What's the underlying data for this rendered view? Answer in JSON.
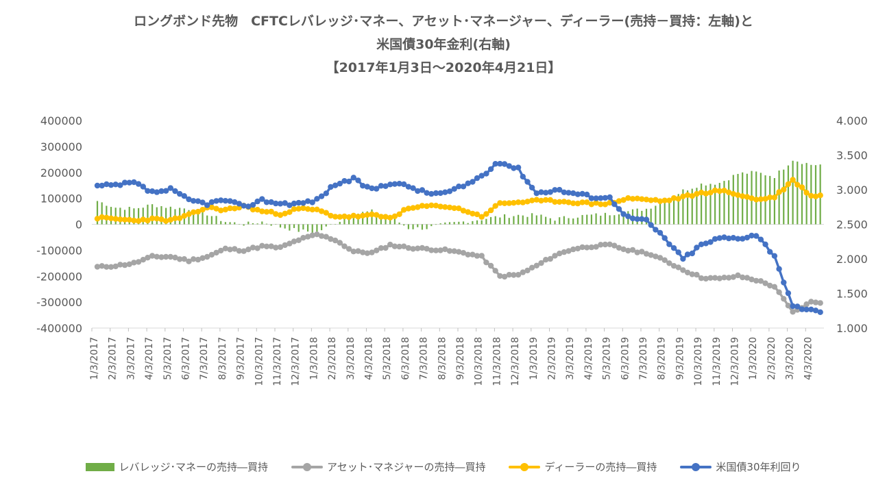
{
  "chart_data": {
    "type": "bar+line",
    "title_lines": [
      "ロングボンド先物　CFTCレバレッジ･マネー、アセット･マネージャー、ディーラー(売持－買持：左軸)と",
      "米国債30年金利(右軸)",
      "【2017年1月3日～2020年4月21日】"
    ],
    "left_axis": {
      "min": -400000,
      "max": 400000,
      "ticks": [
        "400000",
        "300000",
        "200000",
        "100000",
        "0",
        "-100000",
        "-200000",
        "-300000",
        "-400000"
      ]
    },
    "right_axis": {
      "min": 1.0,
      "max": 4.0,
      "ticks": [
        "4.000",
        "3.500",
        "3.000",
        "2.500",
        "2.000",
        "1.500",
        "1.000"
      ]
    },
    "x_tick_labels": [
      "1/3/2017",
      "2/3/2017",
      "3/3/2017",
      "4/3/2017",
      "5/3/2017",
      "6/3/2017",
      "7/3/2017",
      "8/3/2017",
      "9/3/2017",
      "10/3/2017",
      "11/3/2017",
      "12/3/2017",
      "1/3/2018",
      "2/3/2018",
      "3/3/2018",
      "4/3/2018",
      "5/3/2018",
      "6/3/2018",
      "7/3/2018",
      "8/3/2018",
      "9/3/2018",
      "10/3/2018",
      "11/3/2018",
      "12/3/2018",
      "1/3/2019",
      "2/3/2019",
      "3/3/2019",
      "4/3/2019",
      "5/3/2019",
      "6/3/2019",
      "7/3/2019",
      "8/3/2019",
      "9/3/2019",
      "10/3/2019",
      "11/3/2019",
      "12/3/2019",
      "1/3/2020",
      "2/3/2020",
      "3/3/2020",
      "4/3/2020"
    ],
    "series": [
      {
        "name": "レバレッジ･マネーの売持―買持",
        "type": "bar",
        "axis": "left",
        "color": "#70AD47",
        "monthly_values": [
          90000,
          65000,
          60000,
          75000,
          65000,
          60000,
          40000,
          10000,
          0,
          10000,
          -10000,
          -25000,
          -30000,
          5000,
          40000,
          50000,
          30000,
          -15000,
          -15000,
          0,
          10000,
          20000,
          30000,
          35000,
          35000,
          20000,
          30000,
          35000,
          40000,
          50000,
          60000,
          90000,
          130000,
          155000,
          160000,
          195000,
          200000,
          185000,
          250000,
          230000
        ]
      },
      {
        "name": "アセット･マネジャーの売持―買持",
        "type": "line",
        "axis": "left",
        "color": "#A5A5A5",
        "monthly_values": [
          -165000,
          -160000,
          -150000,
          -125000,
          -125000,
          -140000,
          -125000,
          -95000,
          -100000,
          -85000,
          -90000,
          -60000,
          -40000,
          -60000,
          -105000,
          -110000,
          -80000,
          -90000,
          -95000,
          -100000,
          -110000,
          -125000,
          -200000,
          -195000,
          -160000,
          -120000,
          -95000,
          -85000,
          -80000,
          -100000,
          -110000,
          -140000,
          -175000,
          -205000,
          -210000,
          -200000,
          -215000,
          -240000,
          -340000,
          -300000
        ]
      },
      {
        "name": "ディーラーの売持―買持",
        "type": "line",
        "axis": "left",
        "color": "#FFC000",
        "monthly_values": [
          25000,
          20000,
          15000,
          20000,
          15000,
          35000,
          65000,
          55000,
          70000,
          50000,
          40000,
          60000,
          55000,
          30000,
          30000,
          35000,
          25000,
          60000,
          70000,
          70000,
          55000,
          30000,
          80000,
          85000,
          90000,
          90000,
          85000,
          80000,
          80000,
          100000,
          95000,
          90000,
          105000,
          120000,
          130000,
          115000,
          95000,
          105000,
          170000,
          110000
        ]
      },
      {
        "name": "米国債30年利回り",
        "type": "line",
        "axis": "right",
        "color": "#4472C4",
        "monthly_values": [
          3.05,
          3.06,
          3.1,
          2.96,
          3.0,
          2.85,
          2.8,
          2.85,
          2.75,
          2.85,
          2.8,
          2.8,
          2.85,
          3.08,
          3.15,
          3.0,
          3.1,
          3.05,
          2.95,
          2.95,
          3.05,
          3.2,
          3.4,
          3.3,
          2.95,
          3.0,
          2.95,
          2.9,
          2.88,
          2.6,
          2.55,
          2.3,
          2.0,
          2.2,
          2.3,
          2.3,
          2.35,
          2.05,
          1.3,
          1.25
        ]
      }
    ]
  }
}
